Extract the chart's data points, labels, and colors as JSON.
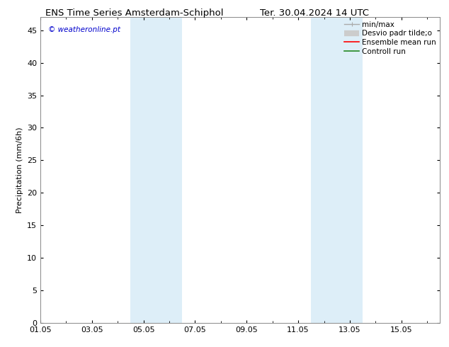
{
  "title_left": "ENS Time Series Amsterdam-Schiphol",
  "title_right": "Ter. 30.04.2024 14 UTC",
  "ylabel": "Precipitation (mm/6h)",
  "watermark": "© weatheronline.pt",
  "watermark_color": "#0000cc",
  "ylim": [
    0,
    47
  ],
  "yticks": [
    0,
    5,
    10,
    15,
    20,
    25,
    30,
    35,
    40,
    45
  ],
  "xtick_labels": [
    "01.05",
    "03.05",
    "05.05",
    "07.05",
    "09.05",
    "11.05",
    "13.05",
    "15.05"
  ],
  "xtick_positions": [
    0,
    2,
    4,
    6,
    8,
    10,
    12,
    14
  ],
  "xlim": [
    0,
    15.5
  ],
  "shaded_bands": [
    {
      "start": 3.5,
      "end": 5.5
    },
    {
      "start": 10.5,
      "end": 12.5
    }
  ],
  "shade_color": "#ddeef8",
  "bg_color": "#ffffff",
  "spine_color": "#888888",
  "title_fontsize": 9.5,
  "axis_label_fontsize": 8,
  "tick_fontsize": 8,
  "watermark_fontsize": 7.5,
  "legend_fontsize": 7.5
}
